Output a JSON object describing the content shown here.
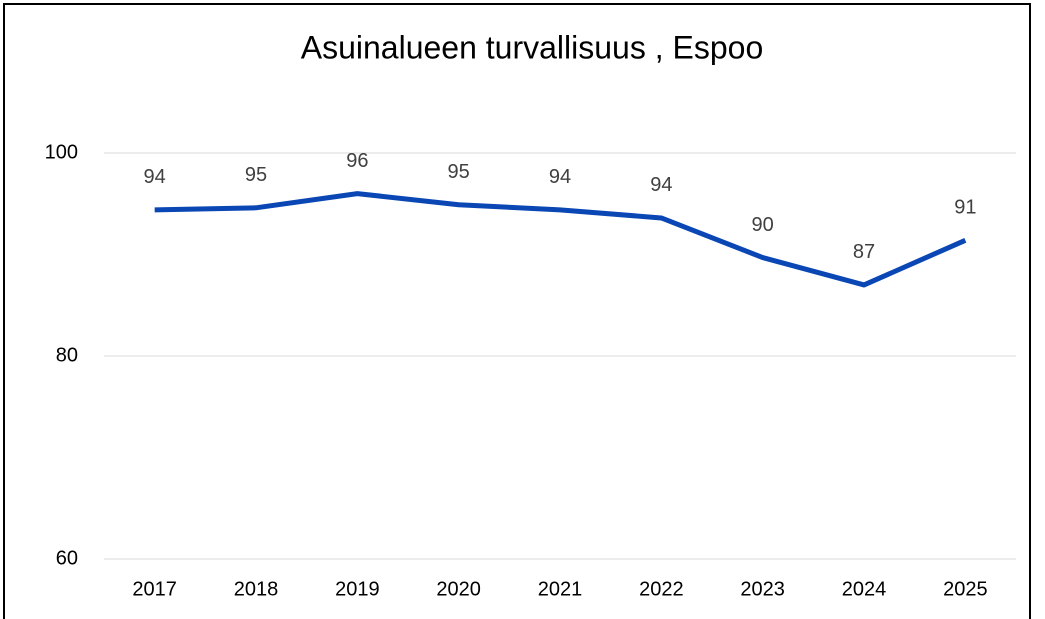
{
  "chart_data": {
    "type": "line",
    "title": "Asuinalueen turvallisuus , Espoo",
    "categories": [
      "2017",
      "2018",
      "2019",
      "2020",
      "2021",
      "2022",
      "2023",
      "2024",
      "2025"
    ],
    "series": [
      {
        "name": "Espoo",
        "color": "#0a47b5",
        "values": [
          94.4,
          94.6,
          96.0,
          94.9,
          94.4,
          93.6,
          89.7,
          87.0,
          91.4
        ],
        "value_labels": [
          "94",
          "95",
          "96",
          "95",
          "94",
          "94",
          "90",
          "87",
          "91"
        ]
      }
    ],
    "ylim": [
      60,
      100
    ],
    "yticks": [
      60,
      80,
      100
    ],
    "grid": true
  }
}
